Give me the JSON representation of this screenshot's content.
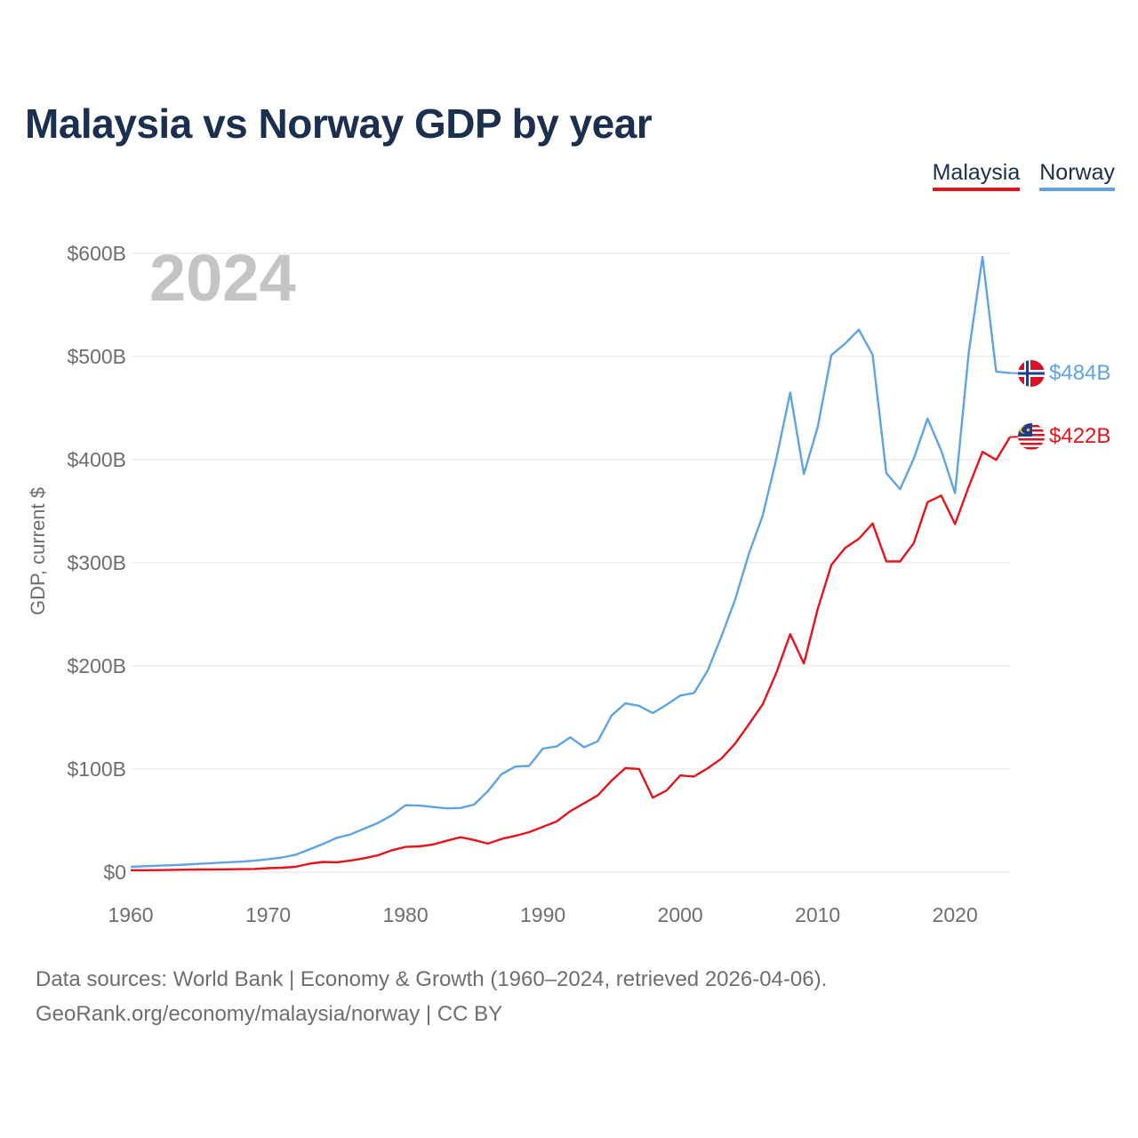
{
  "title": "Malaysia vs Norway GDP by year",
  "legend": {
    "malaysia": "Malaysia",
    "norway": "Norway"
  },
  "colors": {
    "malaysia": "#e8121a",
    "norway": "#5ea3e4",
    "title": "#1b2f4e",
    "year": "#c4c4c4"
  },
  "footer": {
    "line1": "Data sources: World Bank | Economy & Growth (1960–2024, retrieved 2026-04-06).",
    "line2": "GeoRank.org/economy/malaysia/norway | CC BY"
  },
  "chart_data": {
    "type": "line",
    "title": "Malaysia vs Norway GDP by year",
    "ylabel": "GDP, current $",
    "xlabel": "",
    "year_label": "2024",
    "xlim": [
      1960,
      2024
    ],
    "ylim": [
      0,
      600
    ],
    "y_unit": "billions USD",
    "x_ticks": [
      {
        "value": 1960,
        "label": "1960"
      },
      {
        "value": 1970,
        "label": "1970"
      },
      {
        "value": 1980,
        "label": "1980"
      },
      {
        "value": 1990,
        "label": "1990"
      },
      {
        "value": 2000,
        "label": "2000"
      },
      {
        "value": 2010,
        "label": "2010"
      },
      {
        "value": 2020,
        "label": "2020"
      }
    ],
    "y_ticks": [
      {
        "value": 0,
        "label": "$0"
      },
      {
        "value": 100,
        "label": "$100B"
      },
      {
        "value": 200,
        "label": "$200B"
      },
      {
        "value": 300,
        "label": "$300B"
      },
      {
        "value": 400,
        "label": "$400B"
      },
      {
        "value": 500,
        "label": "$500B"
      },
      {
        "value": 600,
        "label": "$600B"
      }
    ],
    "grid": true,
    "x": [
      1960,
      1961,
      1962,
      1963,
      1964,
      1965,
      1966,
      1967,
      1968,
      1969,
      1970,
      1971,
      1972,
      1973,
      1974,
      1975,
      1976,
      1977,
      1978,
      1979,
      1980,
      1981,
      1982,
      1983,
      1984,
      1985,
      1986,
      1987,
      1988,
      1989,
      1990,
      1991,
      1992,
      1993,
      1994,
      1995,
      1996,
      1997,
      1998,
      1999,
      2000,
      2001,
      2002,
      2003,
      2004,
      2005,
      2006,
      2007,
      2008,
      2009,
      2010,
      2011,
      2012,
      2013,
      2014,
      2015,
      2016,
      2017,
      2018,
      2019,
      2020,
      2021,
      2022,
      2023,
      2024
    ],
    "series": [
      {
        "name": "Norway",
        "key": "norway",
        "end_label": "$484B",
        "values": [
          5.2,
          5.8,
          6.3,
          6.7,
          7.3,
          8.1,
          8.8,
          9.6,
          10.2,
          11.1,
          12.6,
          14.2,
          16.9,
          22.0,
          27.3,
          33.3,
          36.6,
          42.2,
          47.8,
          55.1,
          64.9,
          64.6,
          63.2,
          61.9,
          62.2,
          65.5,
          78.6,
          95.0,
          102.4,
          103.0,
          119.8,
          121.9,
          130.8,
          121.1,
          127.0,
          151.9,
          163.7,
          161.3,
          154.2,
          162.3,
          171.3,
          173.7,
          195.4,
          228.7,
          264.4,
          308.9,
          345.6,
          401.1,
          465.0,
          386.0,
          431.5,
          501.4,
          512.6,
          526.0,
          501.7,
          387.0,
          371.4,
          401.0,
          439.8,
          408.7,
          367.6,
          503.5,
          596.6,
          485.3,
          484.0
        ]
      },
      {
        "name": "Malaysia",
        "key": "malaysia",
        "end_label": "$422B",
        "values": [
          1.9,
          1.9,
          2.0,
          2.2,
          2.4,
          2.6,
          2.7,
          2.8,
          2.9,
          3.1,
          3.9,
          4.3,
          5.2,
          8.2,
          9.9,
          9.6,
          11.3,
          13.5,
          16.4,
          21.2,
          24.5,
          25.0,
          26.8,
          30.4,
          33.9,
          31.2,
          27.7,
          32.2,
          35.3,
          38.8,
          44.0,
          49.1,
          59.2,
          66.9,
          74.5,
          88.8,
          100.9,
          100.1,
          72.2,
          79.1,
          93.8,
          92.8,
          100.8,
          110.2,
          124.7,
          143.5,
          162.7,
          193.5,
          230.8,
          202.3,
          255.0,
          297.9,
          314.4,
          323.3,
          338.1,
          301.4,
          301.3,
          319.1,
          358.8,
          365.2,
          337.5,
          373.8,
          407.6,
          399.7,
          422.0
        ]
      }
    ]
  }
}
